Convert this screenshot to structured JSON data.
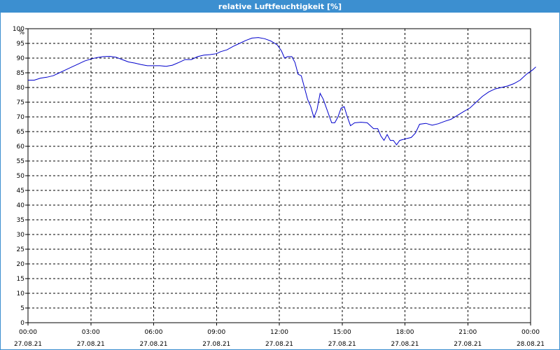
{
  "window": {
    "title": "relative Luftfeuchtigkeit [%]"
  },
  "chart_data": {
    "type": "line",
    "title": "relative Luftfeuchtigkeit [%]",
    "ylabel": "%",
    "xlabel": "",
    "ylim": [
      0,
      100
    ],
    "xlim": [
      0,
      24
    ],
    "grid": true,
    "line_color": "#0000cc",
    "y_ticks": [
      0,
      5,
      10,
      15,
      20,
      25,
      30,
      35,
      40,
      45,
      50,
      55,
      60,
      65,
      70,
      75,
      80,
      85,
      90,
      95,
      100
    ],
    "x_ticks": [
      {
        "time": "00:00",
        "date": "27.08.21"
      },
      {
        "time": "03:00",
        "date": "27.08.21"
      },
      {
        "time": "06:00",
        "date": "27.08.21"
      },
      {
        "time": "09:00",
        "date": "27.08.21"
      },
      {
        "time": "12:00",
        "date": "27.08.21"
      },
      {
        "time": "15:00",
        "date": "27.08.21"
      },
      {
        "time": "18:00",
        "date": "27.08.21"
      },
      {
        "time": "21:00",
        "date": "27.08.21"
      },
      {
        "time": "00:00",
        "date": "28.08.21"
      }
    ],
    "series": [
      {
        "name": "",
        "x_unit": "hours from 27.08.21 00:00",
        "points": [
          [
            0.0,
            82.5
          ],
          [
            0.3,
            82.5
          ],
          [
            0.6,
            83.2
          ],
          [
            0.9,
            83.5
          ],
          [
            1.2,
            84.0
          ],
          [
            1.5,
            85.0
          ],
          [
            1.8,
            86.0
          ],
          [
            2.1,
            87.0
          ],
          [
            2.4,
            88.0
          ],
          [
            2.7,
            89.0
          ],
          [
            3.0,
            89.7
          ],
          [
            3.3,
            90.2
          ],
          [
            3.6,
            90.5
          ],
          [
            3.9,
            90.6
          ],
          [
            4.2,
            90.3
          ],
          [
            4.5,
            89.5
          ],
          [
            4.8,
            88.7
          ],
          [
            5.1,
            88.3
          ],
          [
            5.4,
            87.8
          ],
          [
            5.7,
            87.4
          ],
          [
            6.0,
            87.4
          ],
          [
            6.3,
            87.4
          ],
          [
            6.6,
            87.2
          ],
          [
            6.9,
            87.6
          ],
          [
            7.2,
            88.5
          ],
          [
            7.5,
            89.5
          ],
          [
            7.8,
            89.5
          ],
          [
            8.1,
            90.5
          ],
          [
            8.4,
            91.0
          ],
          [
            8.7,
            91.2
          ],
          [
            9.0,
            91.5
          ],
          [
            9.2,
            92.2
          ],
          [
            9.5,
            92.8
          ],
          [
            9.8,
            94.0
          ],
          [
            10.1,
            95.0
          ],
          [
            10.4,
            96.0
          ],
          [
            10.7,
            96.8
          ],
          [
            11.0,
            97.0
          ],
          [
            11.3,
            96.6
          ],
          [
            11.6,
            95.8
          ],
          [
            11.9,
            94.5
          ],
          [
            12.1,
            92.5
          ],
          [
            12.25,
            90.0
          ],
          [
            12.4,
            90.5
          ],
          [
            12.6,
            90.5
          ],
          [
            12.75,
            88.5
          ],
          [
            12.9,
            84.5
          ],
          [
            13.05,
            84.0
          ],
          [
            13.2,
            80.0
          ],
          [
            13.35,
            76.0
          ],
          [
            13.5,
            73.5
          ],
          [
            13.65,
            69.8
          ],
          [
            13.8,
            72.5
          ],
          [
            13.95,
            78.0
          ],
          [
            14.1,
            76.0
          ],
          [
            14.3,
            72.0
          ],
          [
            14.5,
            68.0
          ],
          [
            14.65,
            68.0
          ],
          [
            14.8,
            70.0
          ],
          [
            14.95,
            73.0
          ],
          [
            15.1,
            73.5
          ],
          [
            15.25,
            70.0
          ],
          [
            15.4,
            67.0
          ],
          [
            15.6,
            68.0
          ],
          [
            15.9,
            68.2
          ],
          [
            16.2,
            68.0
          ],
          [
            16.5,
            66.0
          ],
          [
            16.7,
            66.0
          ],
          [
            16.85,
            63.5
          ],
          [
            17.0,
            62.0
          ],
          [
            17.15,
            64.0
          ],
          [
            17.3,
            62.0
          ],
          [
            17.45,
            62.0
          ],
          [
            17.6,
            60.5
          ],
          [
            17.75,
            62.0
          ],
          [
            18.0,
            62.5
          ],
          [
            18.3,
            63.0
          ],
          [
            18.5,
            64.5
          ],
          [
            18.7,
            67.5
          ],
          [
            19.0,
            67.8
          ],
          [
            19.3,
            67.2
          ],
          [
            19.6,
            67.7
          ],
          [
            19.9,
            68.5
          ],
          [
            20.2,
            69.2
          ],
          [
            20.5,
            70.5
          ],
          [
            20.8,
            71.8
          ],
          [
            21.1,
            73.0
          ],
          [
            21.4,
            75.0
          ],
          [
            21.7,
            77.0
          ],
          [
            22.0,
            78.5
          ],
          [
            22.3,
            79.5
          ],
          [
            22.6,
            80.0
          ],
          [
            22.9,
            80.5
          ],
          [
            23.2,
            81.3
          ],
          [
            23.5,
            82.5
          ],
          [
            23.8,
            84.5
          ],
          [
            24.1,
            86.0
          ],
          [
            24.25,
            87.0
          ]
        ]
      }
    ]
  }
}
